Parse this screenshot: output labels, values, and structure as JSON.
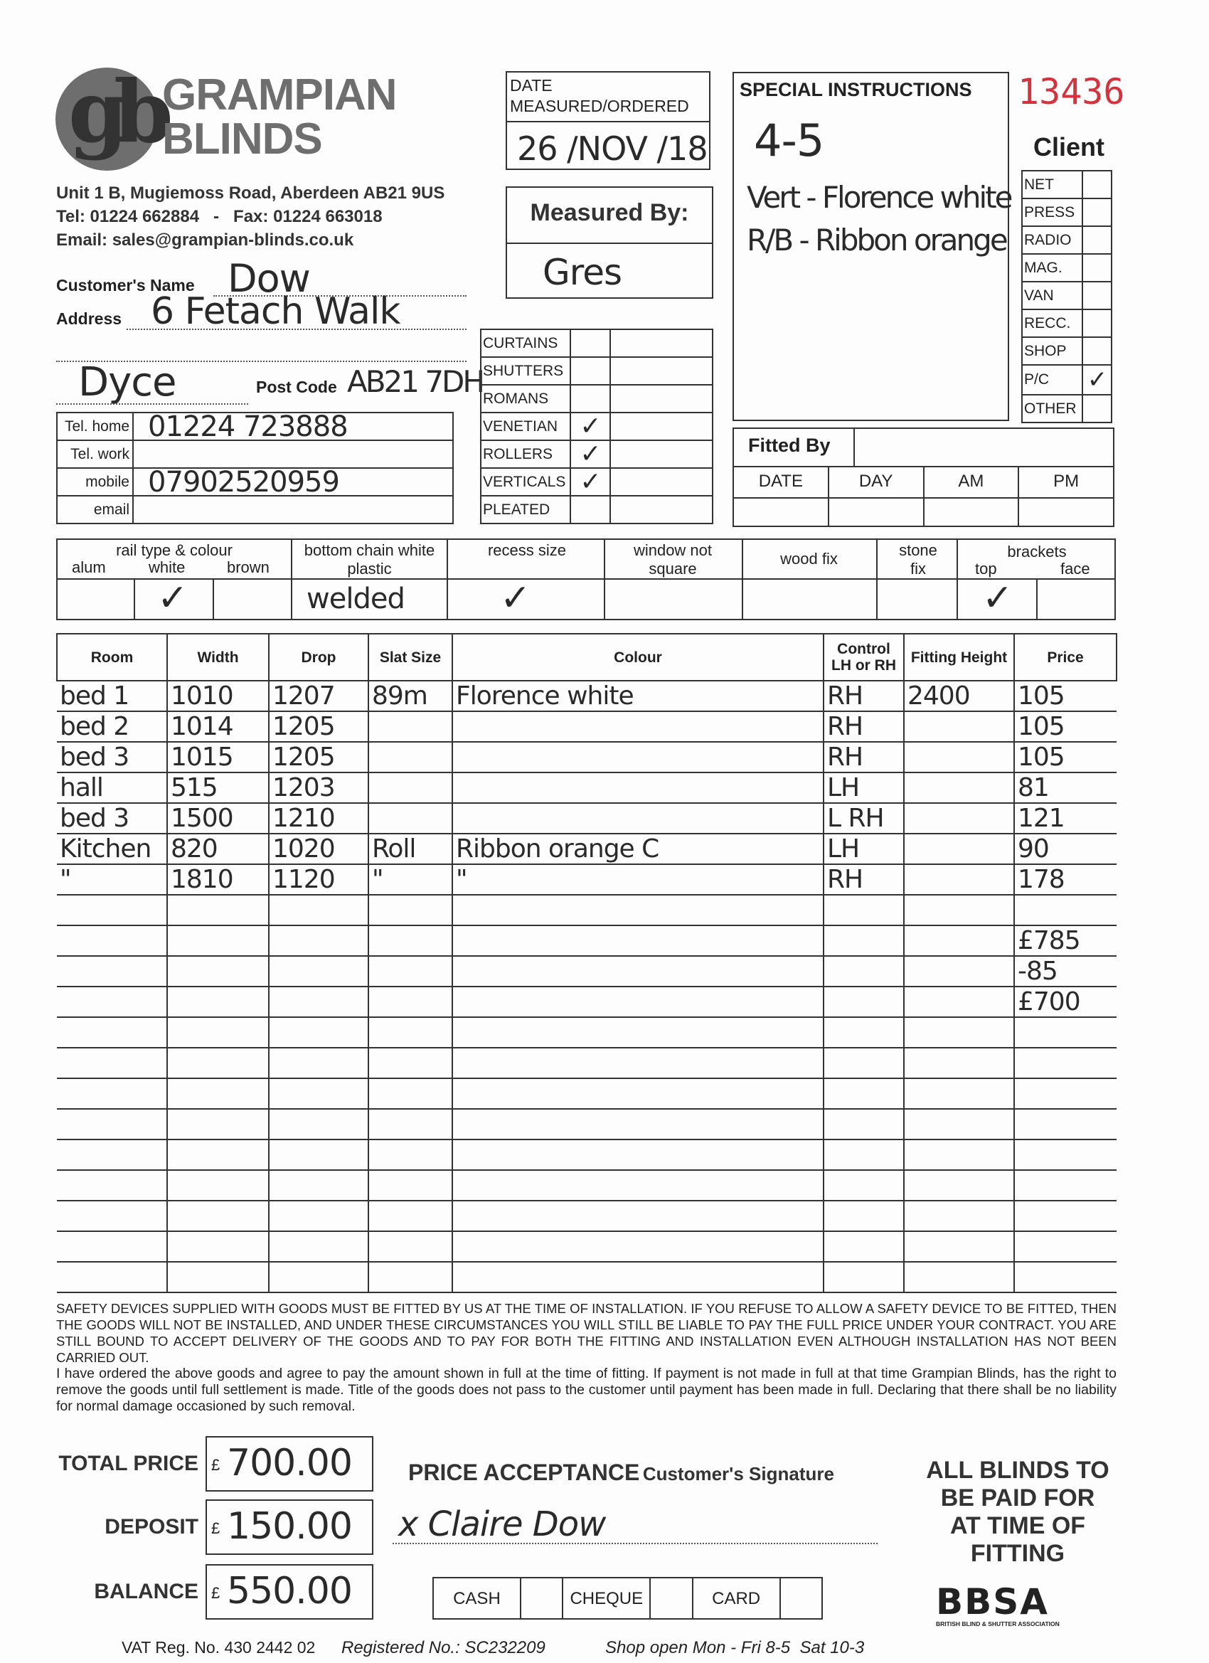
{
  "company": {
    "name_line1": "GRAMPIAN",
    "name_line2": "BLINDS",
    "logo_letters": "gb",
    "address": "Unit 1 B, Mugiemoss Road, Aberdeen AB21 9US",
    "tel_fax": "Tel: 01224 662884   -   Fax: 01224 663018",
    "email": "Email: sales@grampian-blinds.co.uk",
    "logo_color": "#6e6e6e"
  },
  "order_number": "13436",
  "order_number_color": "#d4323c",
  "date_box": {
    "label": "DATE MEASURED/ORDERED",
    "value": "26 /NOV /18"
  },
  "measured_by": {
    "label": "Measured By:",
    "value": "Gres"
  },
  "special_instructions": {
    "label": "SPECIAL INSTRUCTIONS",
    "lines": [
      "4-5",
      "Vert - Florence white",
      "R/B - Ribbon orange"
    ]
  },
  "client": {
    "label": "Client",
    "options": [
      {
        "label": "NET",
        "checked": false
      },
      {
        "label": "PRESS",
        "checked": false
      },
      {
        "label": "RADIO",
        "checked": false
      },
      {
        "label": "MAG.",
        "checked": false
      },
      {
        "label": "VAN",
        "checked": false
      },
      {
        "label": "RECC.",
        "checked": false
      },
      {
        "label": "SHOP",
        "checked": false
      },
      {
        "label": "P/C",
        "checked": true
      },
      {
        "label": "OTHER",
        "checked": false
      }
    ],
    "check_mark": "✓"
  },
  "customer": {
    "name_label": "Customer's Name",
    "name": "Dow",
    "address_label": "Address",
    "address_line1": "6 Fetach Walk",
    "address_line2": "Dyce",
    "postcode_label": "Post Code",
    "postcode": "AB21 7DH"
  },
  "phones": [
    {
      "label": "Tel. home",
      "value": "01224 723888"
    },
    {
      "label": "Tel. work",
      "value": ""
    },
    {
      "label": "mobile",
      "value": "07902520959"
    },
    {
      "label": "email",
      "value": ""
    }
  ],
  "products": {
    "check_mark": "✓",
    "items": [
      {
        "label": "CURTAINS",
        "checked": false
      },
      {
        "label": "SHUTTERS",
        "checked": false
      },
      {
        "label": "ROMANS",
        "checked": false
      },
      {
        "label": "VENETIAN",
        "checked": true
      },
      {
        "label": "ROLLERS",
        "checked": true
      },
      {
        "label": "VERTICALS",
        "checked": true
      },
      {
        "label": "PLEATED",
        "checked": false
      }
    ]
  },
  "fitted_by": {
    "label": "Fitted By",
    "columns": [
      "DATE",
      "DAY",
      "AM",
      "PM"
    ]
  },
  "options_row": {
    "rail": {
      "label": "rail type & colour",
      "sub": [
        "alum",
        "white",
        "brown"
      ],
      "value_white": "✓"
    },
    "bottom_chain": {
      "label": "bottom chain white plastic",
      "value": "welded"
    },
    "recess": {
      "label": "recess size",
      "value": "✓"
    },
    "window": {
      "label": "window not square"
    },
    "wood": {
      "label": "wood fix"
    },
    "stone": {
      "label": "stone fix"
    },
    "brackets": {
      "label": "brackets",
      "sub": [
        "top",
        "face"
      ],
      "value_top": "✓"
    }
  },
  "order_table": {
    "headers": [
      "Room",
      "Width",
      "Drop",
      "Slat Size",
      "Colour",
      "Control LH or RH",
      "Fitting Height",
      "Price"
    ],
    "rows": [
      [
        "bed 1",
        "1010",
        "1207",
        "89m",
        "Florence white",
        "RH",
        "2400",
        "105"
      ],
      [
        "bed 2",
        "1014",
        "1205",
        "",
        "",
        "RH",
        "",
        "105"
      ],
      [
        "bed 3",
        "1015",
        "1205",
        "",
        "",
        "RH",
        "",
        "105"
      ],
      [
        "hall",
        "515",
        "1203",
        "",
        "",
        "LH",
        "",
        "81"
      ],
      [
        "bed 3",
        "1500",
        "1210",
        "",
        "",
        "L RH",
        "",
        "121"
      ],
      [
        "Kitchen",
        "820",
        "1020",
        "Roll",
        "Ribbon orange   C",
        "LH",
        "",
        "90"
      ],
      [
        "\"",
        "1810",
        "1120",
        "\"",
        "\"",
        "RH",
        "",
        "178"
      ],
      [
        "",
        "",
        "",
        "",
        "",
        "",
        "",
        ""
      ],
      [
        "",
        "",
        "",
        "",
        "",
        "",
        "",
        "£785"
      ],
      [
        "",
        "",
        "",
        "",
        "",
        "",
        "",
        "-85"
      ],
      [
        "",
        "",
        "",
        "",
        "",
        "",
        "",
        "£700"
      ],
      [
        "",
        "",
        "",
        "",
        "",
        "",
        "",
        ""
      ],
      [
        "",
        "",
        "",
        "",
        "",
        "",
        "",
        ""
      ],
      [
        "",
        "",
        "",
        "",
        "",
        "",
        "",
        ""
      ],
      [
        "",
        "",
        "",
        "",
        "",
        "",
        "",
        ""
      ],
      [
        "",
        "",
        "",
        "",
        "",
        "",
        "",
        ""
      ],
      [
        "",
        "",
        "",
        "",
        "",
        "",
        "",
        ""
      ],
      [
        "",
        "",
        "",
        "",
        "",
        "",
        "",
        ""
      ],
      [
        "",
        "",
        "",
        "",
        "",
        "",
        "",
        ""
      ],
      [
        "",
        "",
        "",
        "",
        "",
        "",
        "",
        ""
      ]
    ]
  },
  "legal": {
    "safety": "SAFETY DEVICES SUPPLIED WITH GOODS MUST BE FITTED BY US AT THE TIME OF INSTALLATION. IF YOU REFUSE TO ALLOW A SAFETY DEVICE TO BE FITTED, THEN THE GOODS WILL NOT BE INSTALLED, AND UNDER THESE CIRCUMSTANCES YOU WILL STILL BE LIABLE TO PAY THE FULL PRICE UNDER YOUR CONTRACT. YOU ARE STILL BOUND TO ACCEPT DELIVERY OF THE GOODS AND TO PAY FOR BOTH THE FITTING AND INSTALLATION EVEN ALTHOUGH INSTALLATION HAS NOT BEEN CARRIED OUT.",
    "agreement": "I have ordered the above goods and agree to pay the amount shown in full at the time of fitting. If payment is not made in full at that time Grampian Blinds, has the right to remove the goods until full settlement is made. Title of the goods does not pass to the customer until payment has been made in full. Declaring that there shall be no liability for normal damage occasioned by such removal."
  },
  "totals": {
    "currency": "£",
    "total_label": "TOTAL PRICE",
    "total": "700.00",
    "deposit_label": "DEPOSIT",
    "deposit": "150.00",
    "balance_label": "BALANCE",
    "balance": "550.00"
  },
  "acceptance": {
    "label": "PRICE ACCEPTANCE",
    "sub": "Customer's Signature",
    "signature": "x Claire Dow"
  },
  "payment_methods": [
    "CASH",
    "CHEQUE",
    "CARD"
  ],
  "notice": [
    "ALL BLINDS TO",
    "BE PAID FOR",
    "AT TIME OF",
    "FITTING"
  ],
  "bbsa": {
    "logo": "BBSA",
    "caption": "BRITISH BLIND & SHUTTER ASSOCIATION"
  },
  "footer": {
    "vat": "VAT Reg. No. 430 2442 02",
    "registered": "Registered No.: SC232209",
    "hours": "Shop open Mon - Fri 8-5  Sat 10-3"
  }
}
